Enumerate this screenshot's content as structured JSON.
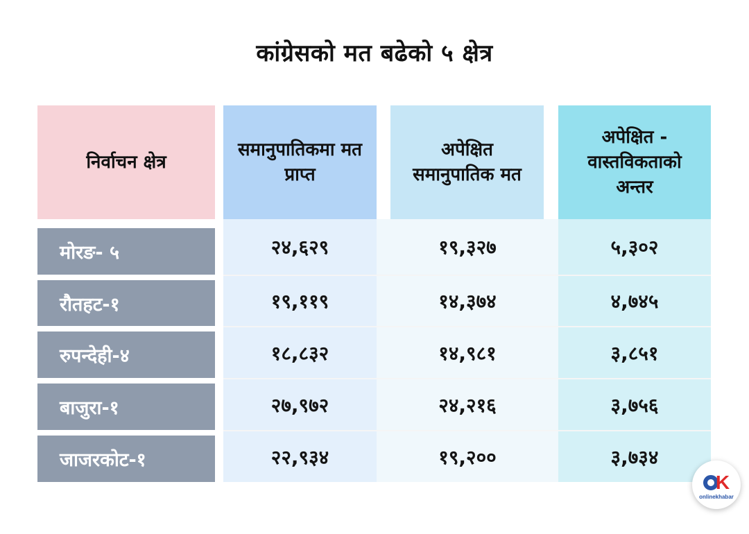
{
  "chart_data": {
    "type": "table",
    "title": "कांग्रेसको मत बढेको ५ क्षेत्र",
    "columns": [
      "निर्वाचन क्षेत्र",
      "समानुपातिकमा मत प्राप्त",
      "अपेक्षित समानुपातिक मत",
      "अपेक्षित - वास्तविकताको अन्तर"
    ],
    "rows": [
      {
        "name": "मोरङ- ५",
        "values": [
          "२४,६२९",
          "१९,३२७",
          "५,३०२"
        ]
      },
      {
        "name": "रौतहट-१",
        "values": [
          "१९,११९",
          "१४,३७४",
          "४,७४५"
        ]
      },
      {
        "name": "रुपन्देही-४",
        "values": [
          "१८,८३२",
          "१४,९८१",
          "३,८५१"
        ]
      },
      {
        "name": "बाजुरा-१",
        "values": [
          "२७,९७२",
          "२४,२१६",
          "३,७५६"
        ]
      },
      {
        "name": "जाजरकोट-१",
        "values": [
          "२२,९३४",
          "१९,२००",
          "३,७३४"
        ]
      }
    ]
  },
  "logo": {
    "text": "onlinekhabar",
    "icon": "onlinekhabar-ok-logo-icon"
  },
  "colors": {
    "header_district": "#f7d3d8",
    "header_received": "#b3d4f6",
    "header_expected": "#c6e6f6",
    "header_difference": "#95e0ee",
    "row_label": "#8f9bac"
  }
}
